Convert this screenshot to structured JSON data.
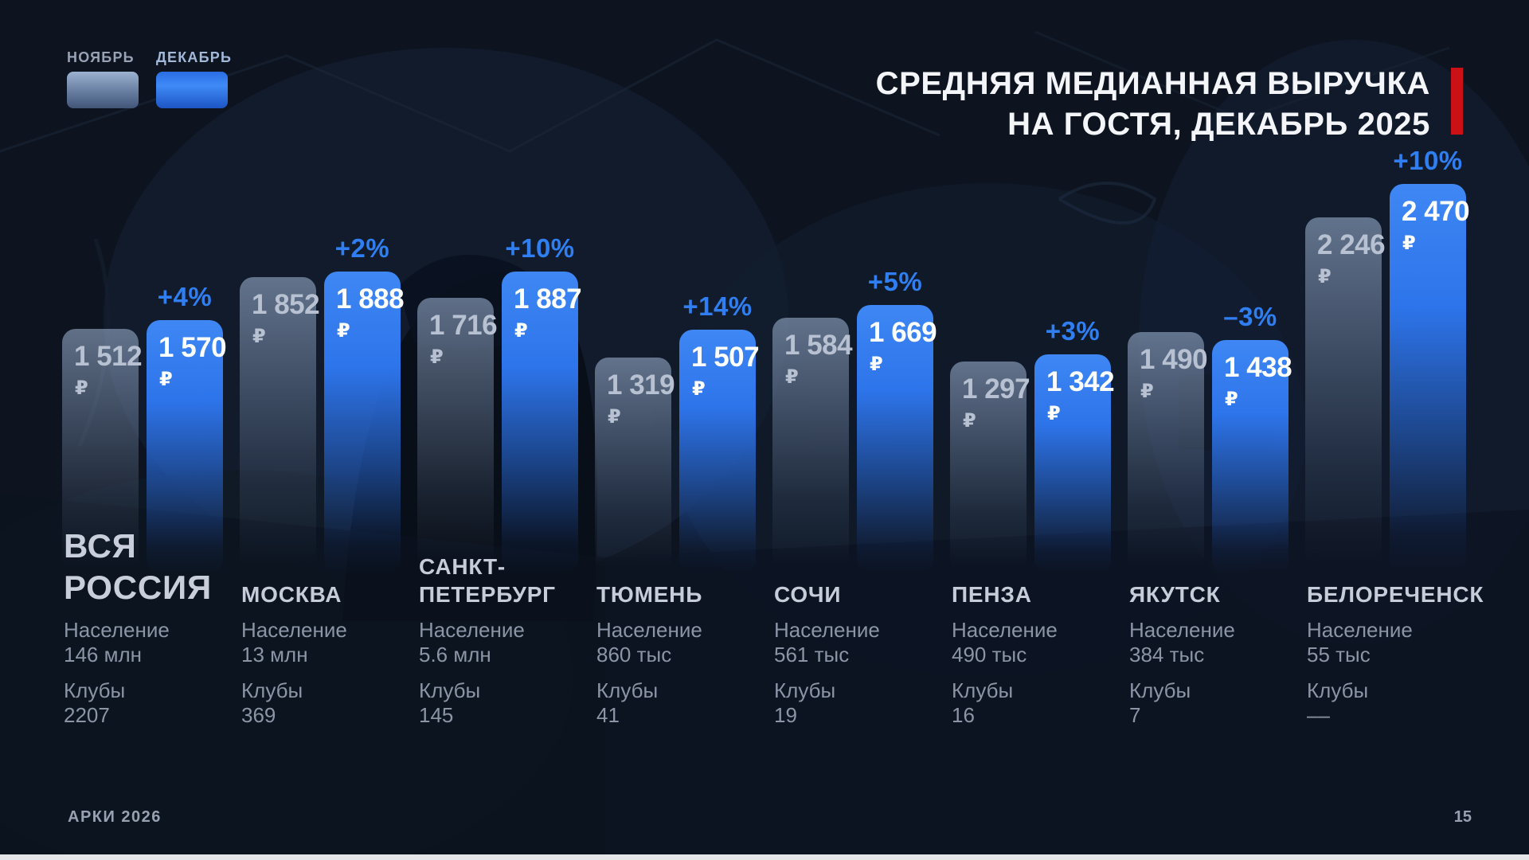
{
  "title": {
    "line1": "СРЕДНЯЯ МЕДИАННАЯ ВЫРУЧКА",
    "line2": "НА ГОСТЯ, ДЕКАБРЬ 2025"
  },
  "footer": {
    "brand": "АРКИ 2026",
    "page": "15"
  },
  "colors": {
    "background": "#0d1420",
    "accent_blue": "#2f7ff2",
    "december_bar": "#2d74ea",
    "november_bar": "#7c91b1",
    "title_red": "#cb1016",
    "text_white": "#f3f5f8",
    "text_gray": "#8b95a6"
  },
  "chart_data": {
    "type": "bar",
    "title": "СРЕДНЯЯ МЕДИАННАЯ ВЫРУЧКА НА ГОСТЯ, ДЕКАБРЬ 2025",
    "unit": "₽",
    "series": [
      "НОЯБРЬ",
      "ДЕКАБРЬ"
    ],
    "legend_position": "top-left",
    "grid": false,
    "meta_labels": {
      "population": "Население",
      "clubs": "Клубы"
    },
    "groups": [
      {
        "name": "ВСЯ РОССИЯ",
        "name_lines": [
          "ВСЯ",
          "РОССИЯ"
        ],
        "emphasis": true,
        "november": 1512,
        "december": 1570,
        "change": "+4%",
        "population": "146 млн",
        "clubs": "2207"
      },
      {
        "name": "МОСКВА",
        "name_lines": [
          "МОСКВА"
        ],
        "november": 1852,
        "december": 1888,
        "change": "+2%",
        "population": "13 млн",
        "clubs": "369"
      },
      {
        "name": "САНКТ-ПЕТЕРБУРГ",
        "name_lines": [
          "САНКТ-",
          "ПЕТЕРБУРГ"
        ],
        "november": 1716,
        "december": 1887,
        "change": "+10%",
        "population": "5.6 млн",
        "clubs": "145"
      },
      {
        "name": "ТЮМЕНЬ",
        "name_lines": [
          "ТЮМЕНЬ"
        ],
        "november": 1319,
        "december": 1507,
        "change": "+14%",
        "population": "860 тыс",
        "clubs": "41"
      },
      {
        "name": "СОЧИ",
        "name_lines": [
          "СОЧИ"
        ],
        "november": 1584,
        "december": 1669,
        "change": "+5%",
        "population": "561 тыс",
        "clubs": "19"
      },
      {
        "name": "ПЕНЗА",
        "name_lines": [
          "ПЕНЗА"
        ],
        "november": 1297,
        "december": 1342,
        "change": "+3%",
        "population": "490 тыс",
        "clubs": "16"
      },
      {
        "name": "ЯКУТСК",
        "name_lines": [
          "ЯКУТСК"
        ],
        "november": 1490,
        "december": 1438,
        "change": "–3%",
        "population": "384 тыс",
        "clubs": "7"
      },
      {
        "name": "БЕЛОРЕЧЕНСК",
        "name_lines": [
          "БЕЛОРЕЧЕНСК"
        ],
        "november": 2246,
        "december": 2470,
        "change": "+10%",
        "population": "55 тыс",
        "clubs": "––"
      }
    ]
  }
}
